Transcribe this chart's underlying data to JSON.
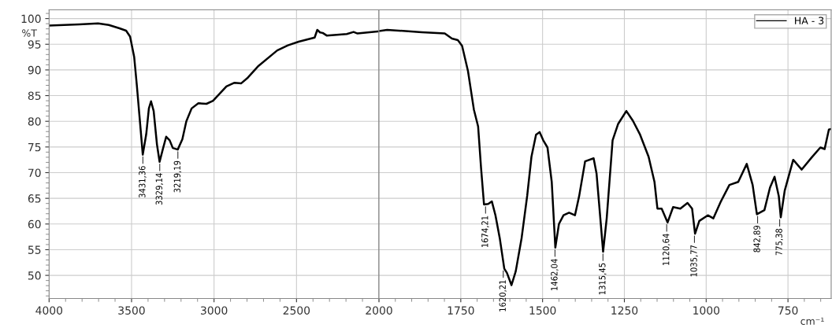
{
  "chart_data": [
    {
      "type": "line",
      "ylabel": "%T",
      "xlim": [
        4000,
        2000
      ],
      "ylim": [
        45.5,
        101.7
      ],
      "xticks": [
        4000,
        3500,
        3000,
        2500,
        2000
      ],
      "yticks": [
        50,
        55,
        60,
        65,
        70,
        75,
        80,
        85,
        90,
        95,
        100
      ],
      "grid": true,
      "line_style": "solid",
      "marker": "none",
      "series": [
        {
          "color": "#000000",
          "x": [
            4000,
            3817,
            3703,
            3638,
            3573,
            3533,
            3509,
            3484,
            3468,
            3452,
            3432,
            3411,
            3395,
            3382,
            3366,
            3346,
            3330,
            3311,
            3290,
            3269,
            3250,
            3220,
            3192,
            3168,
            3136,
            3095,
            3046,
            3006,
            2925,
            2876,
            2835,
            2795,
            2730,
            2617,
            2552,
            2487,
            2390,
            2374,
            2357,
            2341,
            2317,
            2195,
            2154,
            2130,
            2033,
            2000
          ],
          "values": [
            98.65,
            98.85,
            99.05,
            98.75,
            98.1,
            97.65,
            96.5,
            92.5,
            87,
            81,
            73.5,
            77.5,
            82.5,
            83.9,
            82,
            75.5,
            72.1,
            74.5,
            77,
            76.3,
            74.8,
            74.5,
            76.5,
            80,
            82.5,
            83.5,
            83.4,
            84,
            86.8,
            87.5,
            87.4,
            88.5,
            90.8,
            93.8,
            94.8,
            95.5,
            96.3,
            97.8,
            97.3,
            97.2,
            96.7,
            97,
            97.4,
            97.1,
            97.4,
            97.5
          ]
        }
      ],
      "annotations": [
        {
          "text": "3431,36",
          "x": 3431.36,
          "y": 73.5
        },
        {
          "text": "3329,14",
          "x": 3329.14,
          "y": 72.1
        },
        {
          "text": "3219,19",
          "x": 3219.19,
          "y": 74.5
        }
      ]
    },
    {
      "type": "line",
      "xlabel": "cm⁻¹",
      "xlim": [
        2000,
        618
      ],
      "ylim": [
        45.5,
        101.7
      ],
      "xticks": [
        1750,
        1500,
        1250,
        1000,
        750
      ],
      "yticks": [
        50,
        55,
        60,
        65,
        70,
        75,
        80,
        85,
        90,
        95,
        100
      ],
      "tick_labels": "x",
      "grid": true,
      "legend": "top right",
      "line_style": "solid",
      "marker": "none",
      "series": [
        {
          "name": "HA - 3",
          "color": "#000000",
          "x": [
            2000,
            1975,
            1869,
            1799,
            1777,
            1759,
            1746,
            1728,
            1710,
            1697,
            1688,
            1679,
            1666,
            1655,
            1644,
            1631,
            1617,
            1609,
            1595,
            1582,
            1564,
            1547,
            1534,
            1520,
            1509,
            1498,
            1485,
            1472,
            1461,
            1450,
            1436,
            1419,
            1401,
            1388,
            1370,
            1344,
            1335,
            1322,
            1315,
            1304,
            1286,
            1269,
            1244,
            1224,
            1202,
            1176,
            1158,
            1149,
            1136,
            1118,
            1101,
            1079,
            1057,
            1043,
            1034,
            1021,
            995,
            978,
            955,
            929,
            902,
            876,
            858,
            845,
            822,
            805,
            791,
            778,
            772,
            760,
            734,
            708,
            677,
            651,
            638,
            625,
            618
          ],
          "values": [
            97.55,
            97.8,
            97.35,
            97.1,
            96.1,
            95.8,
            94.7,
            89.8,
            82.3,
            79,
            70.9,
            63.8,
            63.9,
            64.4,
            61.7,
            57.3,
            51.3,
            50.5,
            48.1,
            50.8,
            57.3,
            65.5,
            73.1,
            77.4,
            77.9,
            76.3,
            74.9,
            68.2,
            55.4,
            60,
            61.7,
            62.2,
            61.7,
            65.5,
            72.2,
            72.8,
            69.8,
            60,
            54.6,
            61.1,
            76.3,
            79.5,
            82,
            80.1,
            77.4,
            73.1,
            68.2,
            63,
            63,
            60.3,
            63.3,
            63,
            64.1,
            63,
            58.1,
            60.6,
            61.7,
            61.1,
            64.4,
            67.6,
            68.2,
            71.7,
            67.6,
            61.9,
            62.7,
            67.1,
            69.2,
            65.4,
            61.3,
            66.5,
            72.5,
            70.6,
            73,
            74.9,
            74.6,
            78.4,
            78.5
          ]
        }
      ],
      "annotations": [
        {
          "text": "1674,21",
          "x": 1674.21,
          "y": 63.8
        },
        {
          "text": "1620,21",
          "x": 1620.21,
          "y": 51.3
        },
        {
          "text": "1462,04",
          "x": 1462.04,
          "y": 55.4
        },
        {
          "text": "1315,45",
          "x": 1315.45,
          "y": 54.6
        },
        {
          "text": "1120,64",
          "x": 1120.64,
          "y": 60.3
        },
        {
          "text": "1035,77",
          "x": 1035.77,
          "y": 58.1
        },
        {
          "text": "842,89",
          "x": 842.89,
          "y": 61.9
        },
        {
          "text": "775,38",
          "x": 775.38,
          "y": 61.3
        }
      ]
    }
  ]
}
